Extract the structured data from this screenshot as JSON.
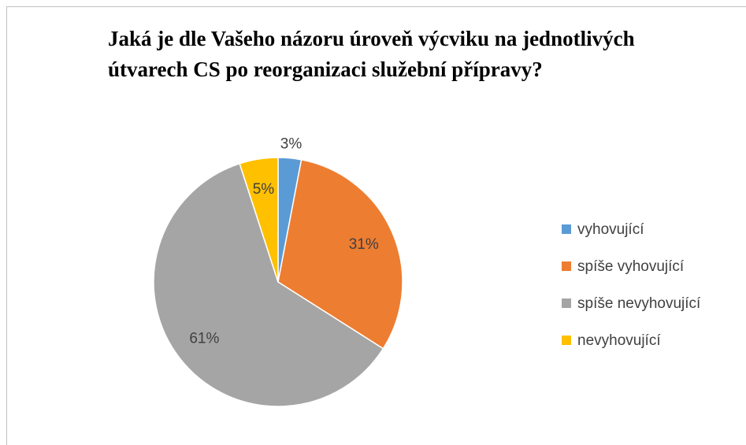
{
  "chart_data": {
    "type": "pie",
    "title": "Jaká je dle Vašeho názoru úroveň výcviku na jednotlivých útvarech CS po reorganizaci služební přípravy?",
    "categories": [
      "vyhovující",
      "spíše vyhovující",
      "spíše nevyhovující",
      "nevyhovující"
    ],
    "values": [
      3,
      31,
      61,
      5
    ],
    "value_labels": [
      "3%",
      "31%",
      "61%",
      "5%"
    ],
    "colors": [
      "#5b9bd5",
      "#ed7d31",
      "#a5a5a5",
      "#ffc000"
    ],
    "legend": "right"
  }
}
